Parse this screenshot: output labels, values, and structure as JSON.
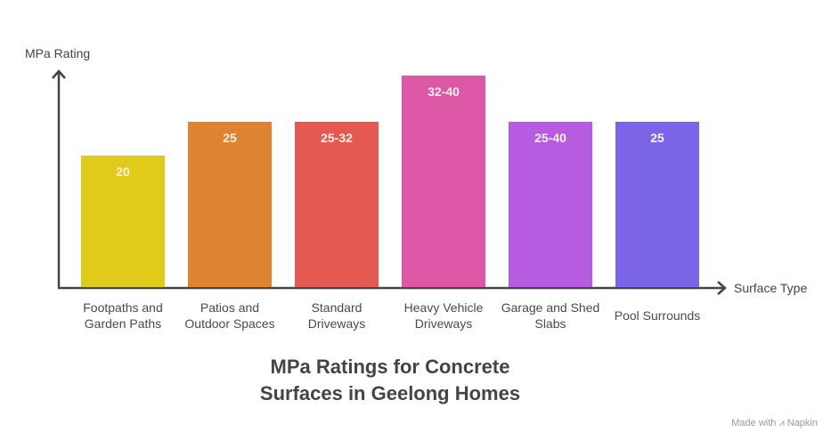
{
  "chart_data": {
    "type": "bar",
    "title": "MPa Ratings for Concrete Surfaces in Geelong Homes",
    "title_lines": [
      "MPa Ratings for Concrete",
      "Surfaces in Geelong Homes"
    ],
    "xlabel": "Surface Type",
    "ylabel": "MPa Rating",
    "categories": [
      "Footpaths and Garden Paths",
      "Patios and Outdoor Spaces",
      "Standard Driveways",
      "Heavy Vehicle Driveways",
      "Garage and Shed Slabs",
      "Pool Surrounds"
    ],
    "category_lines": [
      [
        "Footpaths and",
        "Garden Paths"
      ],
      [
        "Patios and",
        "Outdoor Spaces"
      ],
      [
        "Standard",
        "Driveways"
      ],
      [
        "Heavy Vehicle",
        "Driveways"
      ],
      [
        "Garage and Shed",
        "Slabs"
      ],
      [
        "Pool Surrounds"
      ]
    ],
    "value_labels": [
      "20",
      "25",
      "25-32",
      "32-40",
      "25-40",
      "25"
    ],
    "values": [
      20,
      25,
      25,
      32,
      25,
      25
    ],
    "ranges": [
      [
        20,
        20
      ],
      [
        25,
        25
      ],
      [
        25,
        32
      ],
      [
        32,
        40
      ],
      [
        25,
        40
      ],
      [
        25,
        25
      ]
    ],
    "bar_colors": [
      "#e0ca1a",
      "#de8331",
      "#e45a52",
      "#dc58a6",
      "#b65ce0",
      "#7b64e6"
    ],
    "grid": false,
    "legend": null
  },
  "credit": {
    "text": "Made with",
    "brand": "Napkin"
  }
}
